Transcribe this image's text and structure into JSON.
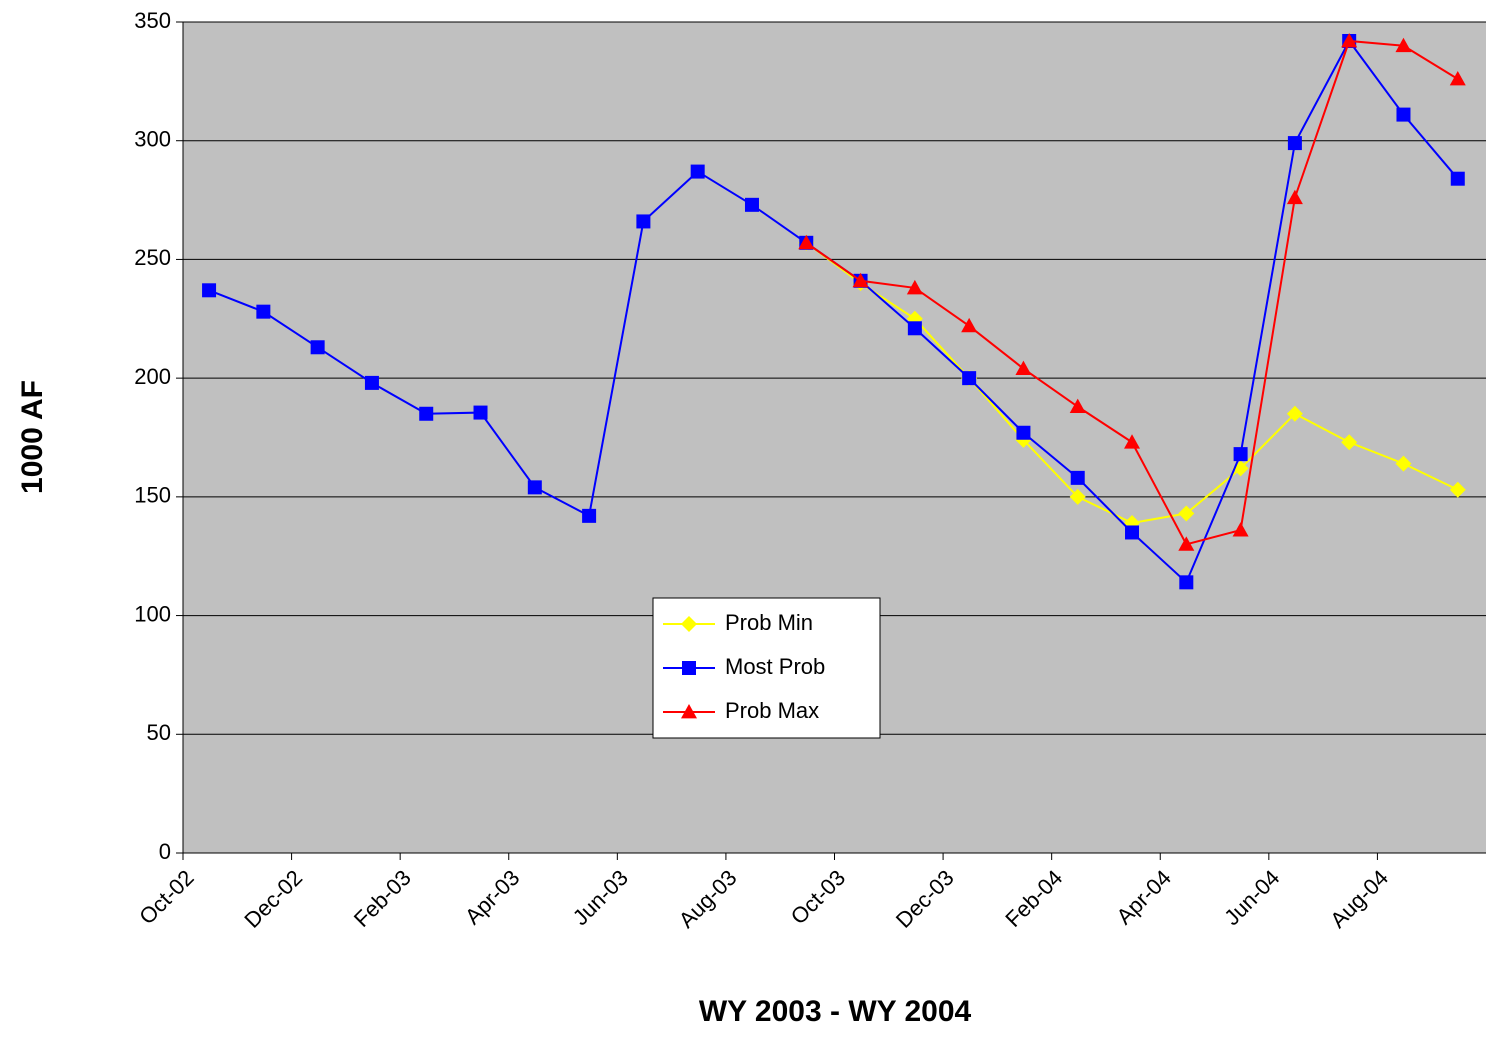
{
  "chart_data": {
    "type": "line",
    "x_label": "WY 2003 - WY 2004",
    "y_label": "1000 AF",
    "categories": [
      "Oct-02",
      null,
      "Dec-02",
      null,
      "Feb-03",
      null,
      "Apr-03",
      null,
      "Jun-03",
      null,
      "Aug-03",
      null,
      "Oct-03",
      null,
      "Dec-03",
      null,
      "Feb-04",
      null,
      "Apr-04",
      null,
      "Jun-04",
      null,
      "Aug-04",
      null
    ],
    "series": [
      {
        "name": "Prob Min",
        "color": "#ffff00",
        "marker": "diamond",
        "values": [
          null,
          null,
          null,
          null,
          null,
          null,
          null,
          null,
          null,
          null,
          null,
          257,
          240,
          225,
          200,
          174,
          150,
          139,
          143,
          162,
          185,
          173,
          164,
          153
        ]
      },
      {
        "name": "Most Prob",
        "color": "#0000ff",
        "marker": "square",
        "values": [
          237,
          228,
          213,
          198,
          185,
          185.5,
          154,
          142,
          266,
          287,
          273,
          257,
          241,
          221,
          200,
          177,
          158,
          135,
          114,
          168,
          299,
          342,
          311,
          284
        ]
      },
      {
        "name": "Prob Max",
        "color": "#ff0000",
        "marker": "triangle",
        "values": [
          null,
          null,
          null,
          null,
          null,
          null,
          null,
          null,
          null,
          null,
          null,
          257,
          241,
          238,
          222,
          204,
          188,
          173,
          130,
          136,
          276,
          342,
          340,
          326
        ]
      }
    ],
    "ylim": [
      0,
      350
    ],
    "yticks": [
      0,
      50,
      100,
      150,
      200,
      250,
      300,
      350
    ],
    "grid": true,
    "plot_background": "#c0c0c0",
    "legend": "center"
  }
}
